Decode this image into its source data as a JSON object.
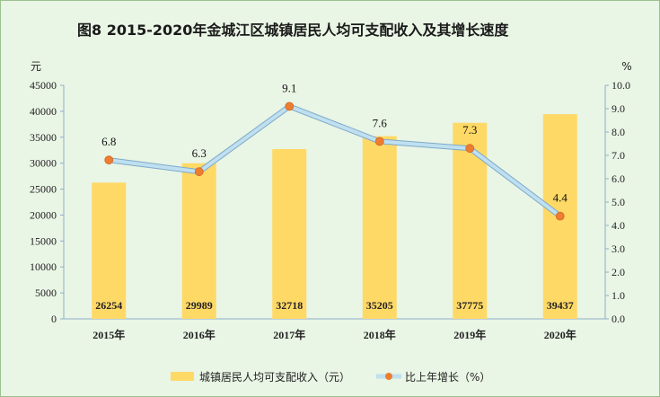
{
  "chart_data": {
    "type": "bar+line",
    "title": "图8    2015-2020年金城江区城镇居民人均可支配收入及其增长速度",
    "categories": [
      "2015年",
      "2016年",
      "2017年",
      "2018年",
      "2019年",
      "2020年"
    ],
    "left_axis": {
      "unit": "元",
      "min": 0,
      "max": 45000,
      "step": 5000,
      "ticks": [
        "0",
        "5000",
        "10000",
        "15000",
        "20000",
        "25000",
        "30000",
        "35000",
        "40000",
        "45000"
      ]
    },
    "right_axis": {
      "unit": "%",
      "min": 0,
      "max": 10,
      "step": 1,
      "ticks": [
        "0.0",
        "1.0",
        "2.0",
        "3.0",
        "4.0",
        "5.0",
        "6.0",
        "7.0",
        "8.0",
        "9.0",
        "10.0"
      ]
    },
    "series": [
      {
        "name": "城镇居民人均可支配收入（元）",
        "type": "bar",
        "axis": "left",
        "values": [
          26254,
          29989,
          32718,
          35205,
          37775,
          39437
        ],
        "labels": [
          "26254",
          "29989",
          "32718",
          "35205",
          "37775",
          "39437"
        ]
      },
      {
        "name": "比上年增长（%）",
        "type": "line",
        "axis": "right",
        "values": [
          6.8,
          6.3,
          9.1,
          7.6,
          7.3,
          4.4
        ],
        "labels": [
          "6.8",
          "6.3",
          "9.1",
          "7.6",
          "7.3",
          "4.4"
        ]
      }
    ],
    "colors": {
      "bar": "#ffd966",
      "line": "#bfe0f0",
      "line_edge": "#7fa9c8",
      "marker": "#ed7d31",
      "axis": "#8faecc",
      "background": "#e9f5e5"
    },
    "grid": false,
    "legend_position": "bottom"
  }
}
